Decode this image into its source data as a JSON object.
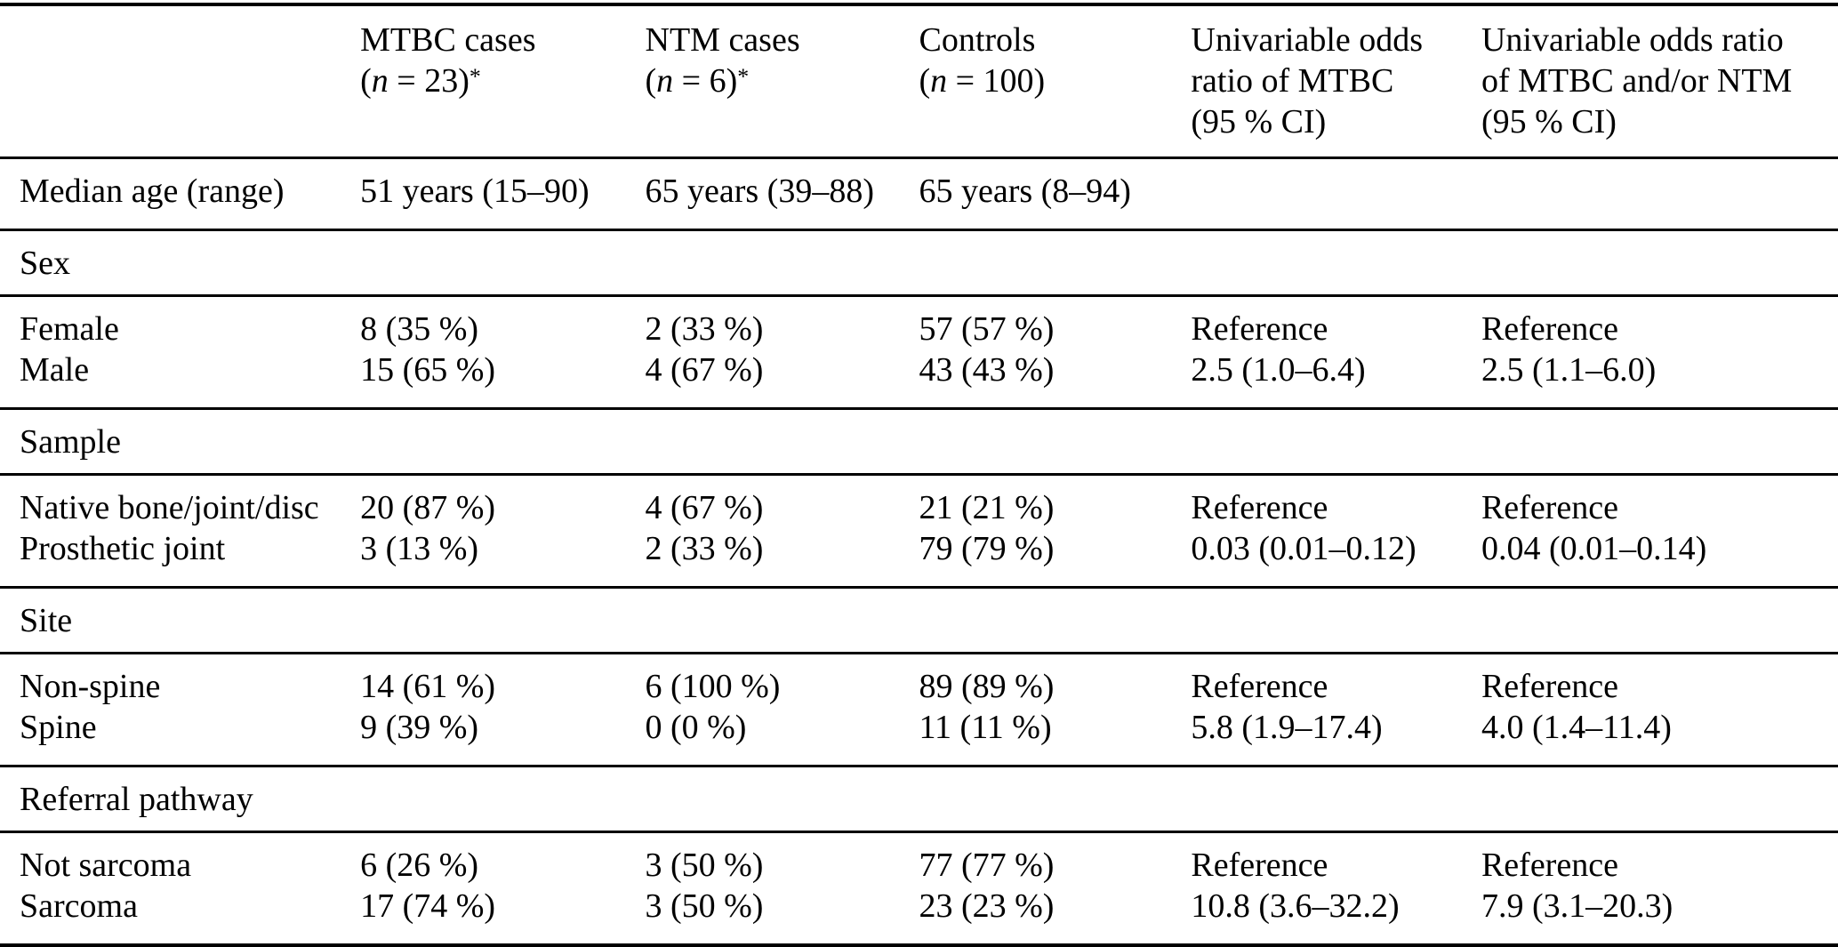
{
  "colors": {
    "text": "#000000",
    "background": "#ffffff",
    "rule": "#000000"
  },
  "table": {
    "header": {
      "columns": [
        {
          "lines": [
            ""
          ]
        },
        {
          "lines": [
            "MTBC cases"
          ],
          "sub": {
            "pre": "(",
            "var": "n",
            "mid": " = 23)",
            "sup": "*"
          }
        },
        {
          "lines": [
            "NTM cases"
          ],
          "sub": {
            "pre": "(",
            "var": "n",
            "mid": " = 6)",
            "sup": "*"
          }
        },
        {
          "lines": [
            "Controls"
          ],
          "sub": {
            "pre": "(",
            "var": "n",
            "mid": " = 100)",
            "sup": ""
          }
        },
        {
          "lines": [
            "Univariable odds",
            "ratio of MTBC",
            "(95 % CI)"
          ]
        },
        {
          "lines": [
            "Univariable odds ratio",
            "of MTBC and/or NTM",
            "(95 % CI)"
          ]
        }
      ]
    },
    "bands": [
      {
        "type": "data",
        "rows": [
          {
            "label": "Median age (range)",
            "values": [
              "51 years (15–90)",
              "65 years (39–88)",
              "65 years (8–94)",
              "",
              ""
            ]
          }
        ]
      },
      {
        "type": "section",
        "label": "Sex"
      },
      {
        "type": "data",
        "rows": [
          {
            "label": "Female",
            "values": [
              "8 (35 %)",
              "2 (33 %)",
              "57 (57 %)",
              "Reference",
              "Reference"
            ]
          },
          {
            "label": "Male",
            "values": [
              "15 (65 %)",
              "4 (67 %)",
              "43 (43 %)",
              "2.5 (1.0–6.4)",
              "2.5 (1.1–6.0)"
            ]
          }
        ]
      },
      {
        "type": "section",
        "label": "Sample"
      },
      {
        "type": "data",
        "rows": [
          {
            "label": "Native bone/joint/disc",
            "values": [
              "20 (87 %)",
              "4 (67 %)",
              "21 (21 %)",
              "Reference",
              "Reference"
            ]
          },
          {
            "label": "Prosthetic joint",
            "values": [
              "3 (13 %)",
              "2 (33 %)",
              "79 (79 %)",
              "0.03 (0.01–0.12)",
              "0.04 (0.01–0.14)"
            ]
          }
        ]
      },
      {
        "type": "section",
        "label": "Site"
      },
      {
        "type": "data",
        "rows": [
          {
            "label": "Non-spine",
            "values": [
              "14 (61 %)",
              "6 (100 %)",
              "89 (89 %)",
              "Reference",
              "Reference"
            ]
          },
          {
            "label": "Spine",
            "values": [
              "9 (39 %)",
              "0 (0 %)",
              "11 (11 %)",
              "5.8 (1.9–17.4)",
              "4.0 (1.4–11.4)"
            ]
          }
        ]
      },
      {
        "type": "section",
        "label": "Referral pathway"
      },
      {
        "type": "data",
        "rows": [
          {
            "label": "Not sarcoma",
            "values": [
              "6 (26 %)",
              "3 (50 %)",
              "77 (77 %)",
              "Reference",
              "Reference"
            ]
          },
          {
            "label": "Sarcoma",
            "values": [
              "17 (74 %)",
              "3 (50 %)",
              "23 (23 %)",
              "10.8 (3.6–32.2)",
              "7.9 (3.1–20.3)"
            ]
          }
        ]
      }
    ]
  }
}
